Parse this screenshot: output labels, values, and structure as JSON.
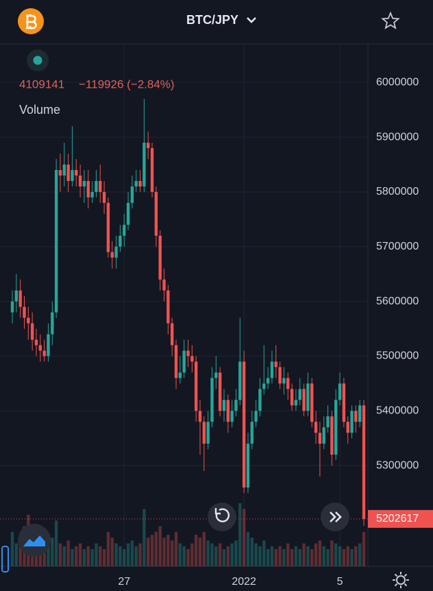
{
  "header": {
    "symbol": "BTC/JPY"
  },
  "chart_data": {
    "type": "candlestick",
    "info": [
      "4109141",
      "−119926 (−2.84%)"
    ],
    "volume_label": "Volume",
    "up_color": "#26a69a",
    "down_color": "#ef5350",
    "categories": [
      null,
      null,
      null,
      null,
      null,
      null,
      null,
      null,
      null,
      null,
      null,
      null,
      null,
      null,
      null,
      null,
      null,
      null,
      null,
      null,
      null,
      null,
      null,
      null,
      null,
      null,
      null,
      null,
      "27",
      null,
      null,
      null,
      null,
      null,
      null,
      null,
      null,
      null,
      null,
      null,
      null,
      null,
      null,
      null,
      null,
      null,
      null,
      null,
      null,
      null,
      null,
      null,
      null,
      null,
      null,
      null,
      null,
      null,
      "2022",
      null,
      null,
      null,
      null,
      null,
      null,
      null,
      null,
      null,
      null,
      null,
      null,
      null,
      null,
      null,
      null,
      null,
      null,
      null,
      null,
      null,
      null,
      null,
      "5",
      null,
      null,
      null,
      null,
      null,
      null
    ],
    "open": [
      5580000,
      5600000,
      5620000,
      5590000,
      5570000,
      5560000,
      5530000,
      5520000,
      5510000,
      5500000,
      5540000,
      5580000,
      5840000,
      5830000,
      5850000,
      5820000,
      5840000,
      5830000,
      5810000,
      5820000,
      5790000,
      5800000,
      5820000,
      5800000,
      5780000,
      5690000,
      5680000,
      5700000,
      5720000,
      5740000,
      5780000,
      5810000,
      5820000,
      5810000,
      5890000,
      5880000,
      5800000,
      5720000,
      5640000,
      5620000,
      5560000,
      5520000,
      5460000,
      5470000,
      5510000,
      5500000,
      5490000,
      5400000,
      5380000,
      5340000,
      5380000,
      5460000,
      5470000,
      5400000,
      5420000,
      5380000,
      5400000,
      5420000,
      5490000,
      5260000,
      5340000,
      5380000,
      5400000,
      5440000,
      5450000,
      5460000,
      5490000,
      5480000,
      5450000,
      5460000,
      5440000,
      5410000,
      5420000,
      5440000,
      5400000,
      5450000,
      5380000,
      5360000,
      5340000,
      5370000,
      5390000,
      5320000,
      5420000,
      5450000,
      5380000,
      5360000,
      5400000,
      5380000,
      5410000
    ],
    "high": [
      5620000,
      5650000,
      5640000,
      5610000,
      5590000,
      5580000,
      5550000,
      5540000,
      5530000,
      5560000,
      5600000,
      5860000,
      5870000,
      5890000,
      5870000,
      5920000,
      5860000,
      5850000,
      5840000,
      5840000,
      5820000,
      5840000,
      5850000,
      5820000,
      5790000,
      5710000,
      5720000,
      5740000,
      5760000,
      5800000,
      5830000,
      5840000,
      5840000,
      5970000,
      5910000,
      5890000,
      5810000,
      5730000,
      5660000,
      5630000,
      5570000,
      5530000,
      5500000,
      5530000,
      5530000,
      5520000,
      5500000,
      5420000,
      5390000,
      5400000,
      5480000,
      5500000,
      5480000,
      5440000,
      5430000,
      5420000,
      5440000,
      5570000,
      5510000,
      5360000,
      5400000,
      5420000,
      5460000,
      5520000,
      5480000,
      5510000,
      5520000,
      5490000,
      5480000,
      5470000,
      5450000,
      5440000,
      5460000,
      5450000,
      5470000,
      5460000,
      5400000,
      5380000,
      5390000,
      5410000,
      5400000,
      5440000,
      5470000,
      5460000,
      5390000,
      5410000,
      5410000,
      5420000,
      5420000
    ],
    "low": [
      5560000,
      5580000,
      5570000,
      5550000,
      5530000,
      5510000,
      5500000,
      5490000,
      5490000,
      5490000,
      5520000,
      5570000,
      5800000,
      5810000,
      5800000,
      5810000,
      5810000,
      5790000,
      5780000,
      5770000,
      5780000,
      5790000,
      5780000,
      5760000,
      5680000,
      5660000,
      5660000,
      5690000,
      5700000,
      5730000,
      5770000,
      5800000,
      5800000,
      5800000,
      5860000,
      5790000,
      5700000,
      5620000,
      5600000,
      5540000,
      5500000,
      5440000,
      5450000,
      5460000,
      5480000,
      5470000,
      5380000,
      5320000,
      5290000,
      5330000,
      5370000,
      5440000,
      5390000,
      5380000,
      5360000,
      5370000,
      5390000,
      5410000,
      5250000,
      5250000,
      5330000,
      5370000,
      5390000,
      5430000,
      5440000,
      5450000,
      5460000,
      5440000,
      5430000,
      5420000,
      5400000,
      5400000,
      5410000,
      5390000,
      5390000,
      5370000,
      5340000,
      5280000,
      5330000,
      5360000,
      5300000,
      5310000,
      5410000,
      5370000,
      5340000,
      5350000,
      5360000,
      5370000,
      5190000
    ],
    "close": [
      5600000,
      5620000,
      5590000,
      5570000,
      5560000,
      5530000,
      5520000,
      5510000,
      5500000,
      5540000,
      5580000,
      5840000,
      5830000,
      5850000,
      5820000,
      5840000,
      5830000,
      5810000,
      5820000,
      5790000,
      5800000,
      5820000,
      5800000,
      5780000,
      5690000,
      5680000,
      5700000,
      5720000,
      5740000,
      5780000,
      5810000,
      5820000,
      5810000,
      5890000,
      5880000,
      5800000,
      5720000,
      5640000,
      5620000,
      5560000,
      5520000,
      5460000,
      5470000,
      5510000,
      5500000,
      5490000,
      5400000,
      5380000,
      5340000,
      5380000,
      5460000,
      5470000,
      5400000,
      5420000,
      5380000,
      5400000,
      5420000,
      5490000,
      5260000,
      5340000,
      5380000,
      5400000,
      5440000,
      5450000,
      5460000,
      5490000,
      5480000,
      5450000,
      5460000,
      5440000,
      5410000,
      5420000,
      5440000,
      5400000,
      5450000,
      5380000,
      5360000,
      5340000,
      5370000,
      5390000,
      5320000,
      5420000,
      5450000,
      5380000,
      5360000,
      5400000,
      5380000,
      5410000,
      5202617
    ],
    "volume": [
      60,
      40,
      55,
      70,
      90,
      50,
      45,
      40,
      35,
      45,
      50,
      80,
      40,
      35,
      45,
      30,
      35,
      40,
      30,
      35,
      30,
      40,
      35,
      30,
      60,
      50,
      40,
      35,
      30,
      40,
      45,
      35,
      40,
      100,
      50,
      55,
      60,
      70,
      50,
      55,
      45,
      60,
      40,
      35,
      30,
      40,
      55,
      50,
      60,
      45,
      40,
      35,
      40,
      30,
      35,
      40,
      45,
      110,
      100,
      60,
      50,
      40,
      35,
      45,
      30,
      35,
      30,
      35,
      30,
      40,
      30,
      35,
      30,
      40,
      35,
      30,
      40,
      45,
      35,
      30,
      45,
      40,
      35,
      30,
      35,
      30,
      35,
      40,
      60
    ],
    "ylim": [
      5116000,
      6068000
    ],
    "yticks": [
      5300000,
      5400000,
      5500000,
      5600000,
      5700000,
      5800000,
      5900000,
      6000000
    ],
    "grid": true
  }
}
